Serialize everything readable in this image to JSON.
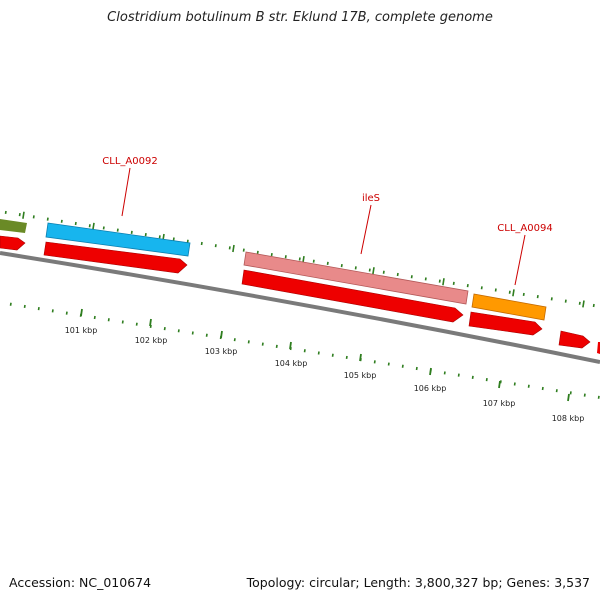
{
  "title": "Clostridium botulinum B str. Eklund 17B, complete genome",
  "footer": {
    "accession": "Accession: NC_010674",
    "summary": "Topology: circular; Length: 3,800,327 bp; Genes: 3,537"
  },
  "ruler": {
    "ticks": [
      "101 kbp",
      "102 kbp",
      "103 kbp",
      "104 kbp",
      "105 kbp",
      "106 kbp",
      "107 kbp",
      "108 kbp"
    ]
  },
  "gene_labels": [
    "CLL_A0092",
    "ileS",
    "CLL_A0094"
  ],
  "colors": {
    "label_red": "#cc0000",
    "gene_red": "#ee0000",
    "backbone": "#7a7a7a",
    "tick_green": "#2e7d1e",
    "olive": "#6a8a26",
    "cyan": "#17b5ee",
    "pink": "#e88a8a",
    "orange": "#ff9900"
  }
}
